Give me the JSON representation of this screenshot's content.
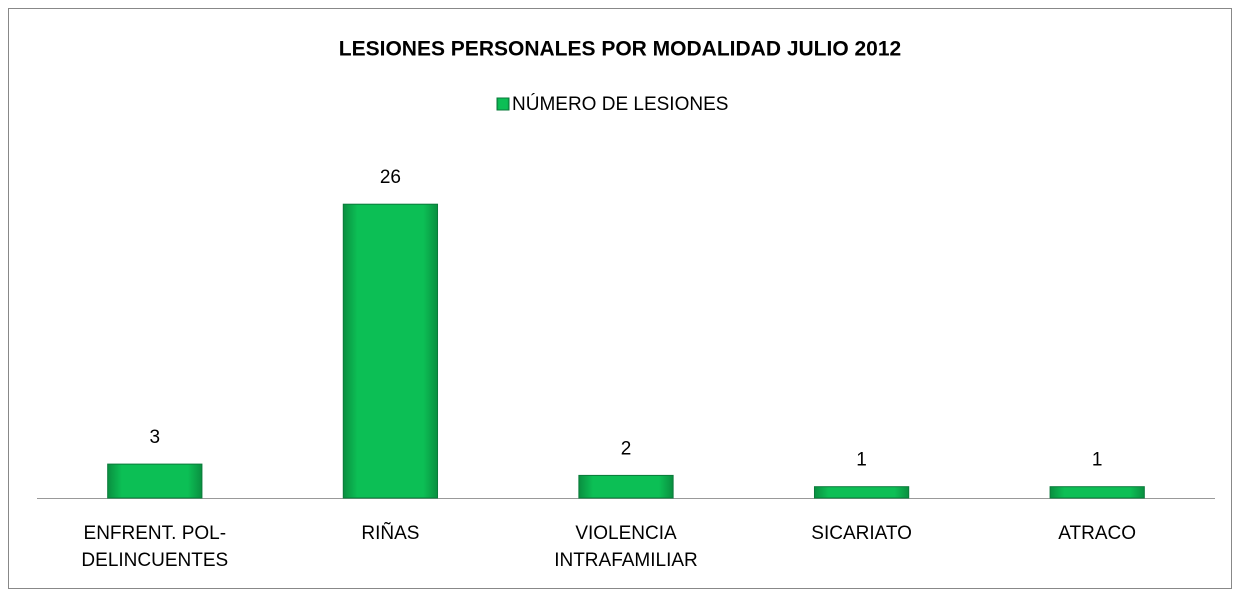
{
  "chart_data": {
    "type": "bar",
    "title": "LESIONES PERSONALES POR MODALIDAD JULIO 2012",
    "categories": [
      "ENFRENT. POL-DELINCUENTES",
      "RIÑAS",
      "VIOLENCIA INTRAFAMILIAR",
      "SICARIATO",
      "ATRACO"
    ],
    "series": [
      {
        "name": "NÚMERO DE LESIONES",
        "color": "#0cbf55",
        "values": [
          3,
          26,
          2,
          1,
          1
        ]
      }
    ],
    "ylim": [
      0,
      30
    ],
    "legend": "top",
    "data_labels": true
  }
}
